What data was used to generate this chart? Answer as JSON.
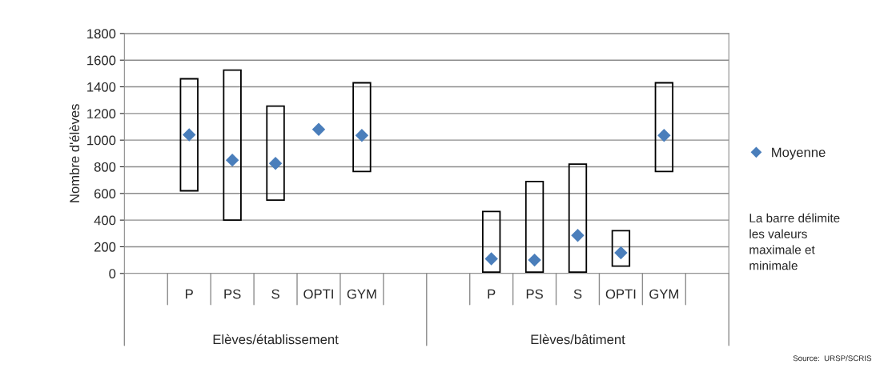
{
  "chart_data": {
    "type": "bar",
    "ylabel": "Nombre d'élèves",
    "categories": [
      null,
      "P",
      "PS",
      "S",
      "OPTI",
      "GYM",
      null,
      null,
      "P",
      "PS",
      "S",
      "OPTI",
      "GYM",
      null
    ],
    "series": [
      {
        "color": "#000000",
        "base": [
          null,
          620,
          400,
          550,
          null,
          765,
          null,
          null,
          10,
          10,
          10,
          55,
          765,
          null
        ],
        "values": [
          null,
          840,
          1125,
          705,
          null,
          665,
          null,
          null,
          455,
          680,
          810,
          265,
          665,
          null
        ]
      },
      {
        "type": "scatter",
        "name": "Moyenne",
        "color": "#4a7ebb",
        "marker": "diamond",
        "values": [
          null,
          1040,
          850,
          825,
          1080,
          1035,
          null,
          null,
          110,
          100,
          285,
          155,
          1035,
          null
        ]
      }
    ],
    "ylim": [
      0,
      1800
    ],
    "yticks": [
      0,
      200,
      400,
      600,
      800,
      1000,
      1200,
      1400,
      1600,
      1800
    ],
    "grid": "y",
    "legend": "right",
    "annotations": [
      "Elèves/établissement",
      "Elèves/bâtiment",
      "La barre délimite les valeurs maximale et minimale",
      "Source:  URSP/SCRIS"
    ]
  }
}
